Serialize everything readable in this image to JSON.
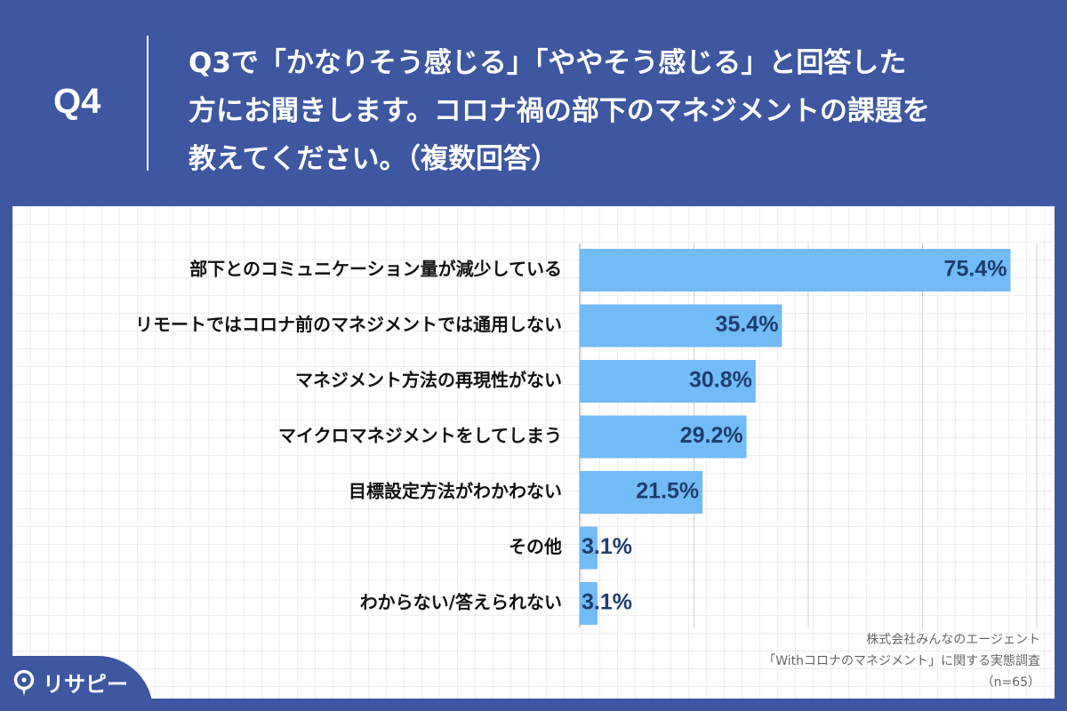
{
  "header": {
    "question_no": "Q4",
    "question_text": "Q3で「かなりそう感じる」「ややそう感じる」と回答した\n方にお聞きします。コロナ禍の部下のマネジメントの課題を\n教えてください。（複数回答）"
  },
  "colors": {
    "brand": "#3d57a1",
    "bar": "#72bbf6",
    "value_label": "#1f3d6e"
  },
  "chart_data": {
    "type": "bar",
    "orientation": "horizontal",
    "categories": [
      "部下とのコミュニケーション量が減少している",
      "リモートではコロナ前のマネジメントでは通用しない",
      "マネジメント方法の再現性がない",
      "マイクロマネジメントをしてしまう",
      "目標設定方法がわかわない",
      "その他",
      "わからない/答えられない"
    ],
    "values": [
      75.4,
      35.4,
      30.8,
      29.2,
      21.5,
      3.1,
      3.1
    ],
    "value_labels": [
      "75.4%",
      "35.4%",
      "30.8%",
      "29.2%",
      "21.5%",
      "3.1%",
      "3.1%"
    ],
    "xlim": [
      0,
      80
    ],
    "grid": true
  },
  "source": {
    "line1": "株式会社みんなのエージェント",
    "line2": "「Withコロナのマネジメント」に関する実態調査",
    "line3": "（n=65）"
  },
  "logo": {
    "text": "リサピー",
    "icon": "map-pin-icon"
  }
}
